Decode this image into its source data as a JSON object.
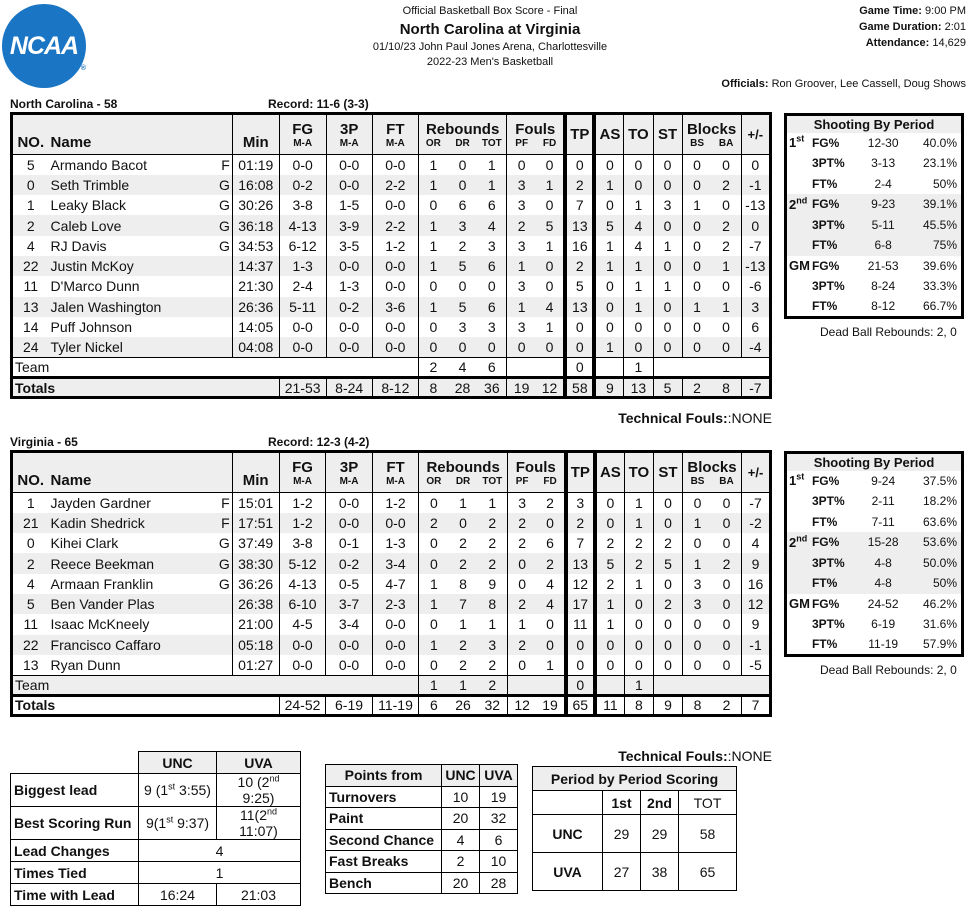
{
  "header": {
    "logo_text": "NCAA",
    "logo_color": "#1a75c4",
    "subtitle": "Official Basketball Box Score - Final",
    "title": "North Carolina at Virginia",
    "venue_line": "01/10/23 John Paul Jones Arena, Charlottesville",
    "season": "2022-23 Men's Basketball",
    "game_time_label": "Game Time:",
    "game_time": "9:00 PM",
    "duration_label": "Game Duration:",
    "duration": "2:01",
    "attendance_label": "Attendance:",
    "attendance": "14,629",
    "officials_label": "Officials:",
    "officials": "Ron Groover, Lee Cassell, Doug Shows"
  },
  "columns": {
    "no": "NO.",
    "name": "Name",
    "min": "Min",
    "fg": "FG",
    "three": "3P",
    "ft": "FT",
    "ma": "M-A",
    "rebounds": "Rebounds",
    "or": "OR",
    "dr": "DR",
    "tot": "TOT",
    "fouls": "Fouls",
    "pf": "PF",
    "fd": "FD",
    "tp": "TP",
    "as": "AS",
    "to": "TO",
    "st": "ST",
    "blocks": "Blocks",
    "bs": "BS",
    "ba": "BA",
    "pm": "+/-"
  },
  "teams": [
    {
      "title": "North Carolina - 58",
      "record": "Record: 11-6 (3-3)",
      "players": [
        {
          "no": "5",
          "name": "Armando Bacot",
          "pos": "F",
          "min": "01:19",
          "fg": "0-0",
          "tp3": "0-0",
          "ft": "0-0",
          "or": "1",
          "dr": "0",
          "tot": "1",
          "pf": "0",
          "fd": "0",
          "tp": "0",
          "as": "0",
          "to": "0",
          "st": "0",
          "bs": "0",
          "ba": "0",
          "pm": "0"
        },
        {
          "no": "0",
          "name": "Seth Trimble",
          "pos": "G",
          "min": "16:08",
          "fg": "0-2",
          "tp3": "0-0",
          "ft": "2-2",
          "or": "1",
          "dr": "0",
          "tot": "1",
          "pf": "3",
          "fd": "1",
          "tp": "2",
          "as": "1",
          "to": "0",
          "st": "0",
          "bs": "0",
          "ba": "2",
          "pm": "-1"
        },
        {
          "no": "1",
          "name": "Leaky Black",
          "pos": "G",
          "min": "30:26",
          "fg": "3-8",
          "tp3": "1-5",
          "ft": "0-0",
          "or": "0",
          "dr": "6",
          "tot": "6",
          "pf": "3",
          "fd": "0",
          "tp": "7",
          "as": "0",
          "to": "1",
          "st": "3",
          "bs": "1",
          "ba": "0",
          "pm": "-13"
        },
        {
          "no": "2",
          "name": "Caleb Love",
          "pos": "G",
          "min": "36:18",
          "fg": "4-13",
          "tp3": "3-9",
          "ft": "2-2",
          "or": "1",
          "dr": "3",
          "tot": "4",
          "pf": "2",
          "fd": "5",
          "tp": "13",
          "as": "5",
          "to": "4",
          "st": "0",
          "bs": "0",
          "ba": "2",
          "pm": "0"
        },
        {
          "no": "4",
          "name": "RJ Davis",
          "pos": "G",
          "min": "34:53",
          "fg": "6-12",
          "tp3": "3-5",
          "ft": "1-2",
          "or": "1",
          "dr": "2",
          "tot": "3",
          "pf": "3",
          "fd": "1",
          "tp": "16",
          "as": "1",
          "to": "4",
          "st": "1",
          "bs": "0",
          "ba": "2",
          "pm": "-7"
        },
        {
          "no": "22",
          "name": "Justin McKoy",
          "pos": "",
          "min": "14:37",
          "fg": "1-3",
          "tp3": "0-0",
          "ft": "0-0",
          "or": "1",
          "dr": "5",
          "tot": "6",
          "pf": "1",
          "fd": "0",
          "tp": "2",
          "as": "1",
          "to": "1",
          "st": "0",
          "bs": "0",
          "ba": "1",
          "pm": "-13"
        },
        {
          "no": "11",
          "name": "D'Marco Dunn",
          "pos": "",
          "min": "21:30",
          "fg": "2-4",
          "tp3": "1-3",
          "ft": "0-0",
          "or": "0",
          "dr": "0",
          "tot": "0",
          "pf": "3",
          "fd": "0",
          "tp": "5",
          "as": "0",
          "to": "1",
          "st": "1",
          "bs": "0",
          "ba": "0",
          "pm": "-6"
        },
        {
          "no": "13",
          "name": "Jalen Washington",
          "pos": "",
          "min": "26:36",
          "fg": "5-11",
          "tp3": "0-2",
          "ft": "3-6",
          "or": "1",
          "dr": "5",
          "tot": "6",
          "pf": "1",
          "fd": "4",
          "tp": "13",
          "as": "0",
          "to": "1",
          "st": "0",
          "bs": "1",
          "ba": "1",
          "pm": "3"
        },
        {
          "no": "14",
          "name": "Puff Johnson",
          "pos": "",
          "min": "14:05",
          "fg": "0-0",
          "tp3": "0-0",
          "ft": "0-0",
          "or": "0",
          "dr": "3",
          "tot": "3",
          "pf": "3",
          "fd": "1",
          "tp": "0",
          "as": "0",
          "to": "0",
          "st": "0",
          "bs": "0",
          "ba": "0",
          "pm": "6"
        },
        {
          "no": "24",
          "name": "Tyler Nickel",
          "pos": "",
          "min": "04:08",
          "fg": "0-0",
          "tp3": "0-0",
          "ft": "0-0",
          "or": "0",
          "dr": "0",
          "tot": "0",
          "pf": "0",
          "fd": "0",
          "tp": "0",
          "as": "1",
          "to": "0",
          "st": "0",
          "bs": "0",
          "ba": "0",
          "pm": "-4"
        }
      ],
      "team_row": {
        "label": "Team",
        "or": "2",
        "dr": "4",
        "tot": "6",
        "tp": "0",
        "to": "1"
      },
      "totals": {
        "label": "Totals",
        "fg": "21-53",
        "tp3": "8-24",
        "ft": "8-12",
        "or": "8",
        "dr": "28",
        "tot": "36",
        "pf": "19",
        "fd": "12",
        "tp": "58",
        "as": "9",
        "to": "13",
        "st": "5",
        "bs": "2",
        "ba": "8",
        "pm": "-7"
      },
      "technical_label": "Technical Fouls:",
      "technical": ":NONE",
      "shooting": {
        "title": "Shooting By Period",
        "periods": [
          {
            "label": "1",
            "sup": "st",
            "rows": [
              {
                "stat": "FG%",
                "ma": "12-30",
                "pct": "40.0%"
              },
              {
                "stat": "3PT%",
                "ma": "3-13",
                "pct": "23.1%"
              },
              {
                "stat": "FT%",
                "ma": "2-4",
                "pct": "50%"
              }
            ]
          },
          {
            "label": "2",
            "sup": "nd",
            "rows": [
              {
                "stat": "FG%",
                "ma": "9-23",
                "pct": "39.1%"
              },
              {
                "stat": "3PT%",
                "ma": "5-11",
                "pct": "45.5%"
              },
              {
                "stat": "FT%",
                "ma": "6-8",
                "pct": "75%"
              }
            ]
          },
          {
            "label": "GM",
            "sup": "",
            "rows": [
              {
                "stat": "FG%",
                "ma": "21-53",
                "pct": "39.6%"
              },
              {
                "stat": "3PT%",
                "ma": "8-24",
                "pct": "33.3%"
              },
              {
                "stat": "FT%",
                "ma": "8-12",
                "pct": "66.7%"
              }
            ]
          }
        ],
        "dead_ball": "Dead Ball Rebounds: 2, 0"
      }
    },
    {
      "title": "Virginia - 65",
      "record": "Record: 12-3 (4-2)",
      "players": [
        {
          "no": "1",
          "name": "Jayden Gardner",
          "pos": "F",
          "min": "15:01",
          "fg": "1-2",
          "tp3": "0-0",
          "ft": "1-2",
          "or": "0",
          "dr": "1",
          "tot": "1",
          "pf": "3",
          "fd": "2",
          "tp": "3",
          "as": "0",
          "to": "1",
          "st": "0",
          "bs": "0",
          "ba": "0",
          "pm": "-7"
        },
        {
          "no": "21",
          "name": "Kadin Shedrick",
          "pos": "F",
          "min": "17:51",
          "fg": "1-2",
          "tp3": "0-0",
          "ft": "0-0",
          "or": "2",
          "dr": "0",
          "tot": "2",
          "pf": "2",
          "fd": "0",
          "tp": "2",
          "as": "0",
          "to": "1",
          "st": "0",
          "bs": "1",
          "ba": "0",
          "pm": "-2"
        },
        {
          "no": "0",
          "name": "Kihei Clark",
          "pos": "G",
          "min": "37:49",
          "fg": "3-8",
          "tp3": "0-1",
          "ft": "1-3",
          "or": "0",
          "dr": "2",
          "tot": "2",
          "pf": "2",
          "fd": "6",
          "tp": "7",
          "as": "2",
          "to": "2",
          "st": "2",
          "bs": "0",
          "ba": "0",
          "pm": "4"
        },
        {
          "no": "2",
          "name": "Reece Beekman",
          "pos": "G",
          "min": "38:30",
          "fg": "5-12",
          "tp3": "0-2",
          "ft": "3-4",
          "or": "0",
          "dr": "2",
          "tot": "2",
          "pf": "0",
          "fd": "2",
          "tp": "13",
          "as": "5",
          "to": "2",
          "st": "5",
          "bs": "1",
          "ba": "2",
          "pm": "9"
        },
        {
          "no": "4",
          "name": "Armaan Franklin",
          "pos": "G",
          "min": "36:26",
          "fg": "4-13",
          "tp3": "0-5",
          "ft": "4-7",
          "or": "1",
          "dr": "8",
          "tot": "9",
          "pf": "0",
          "fd": "4",
          "tp": "12",
          "as": "2",
          "to": "1",
          "st": "0",
          "bs": "3",
          "ba": "0",
          "pm": "16"
        },
        {
          "no": "5",
          "name": "Ben Vander Plas",
          "pos": "",
          "min": "26:38",
          "fg": "6-10",
          "tp3": "3-7",
          "ft": "2-3",
          "or": "1",
          "dr": "7",
          "tot": "8",
          "pf": "2",
          "fd": "4",
          "tp": "17",
          "as": "1",
          "to": "0",
          "st": "2",
          "bs": "3",
          "ba": "0",
          "pm": "12"
        },
        {
          "no": "11",
          "name": "Isaac McKneely",
          "pos": "",
          "min": "21:00",
          "fg": "4-5",
          "tp3": "3-4",
          "ft": "0-0",
          "or": "0",
          "dr": "1",
          "tot": "1",
          "pf": "1",
          "fd": "0",
          "tp": "11",
          "as": "1",
          "to": "0",
          "st": "0",
          "bs": "0",
          "ba": "0",
          "pm": "9"
        },
        {
          "no": "22",
          "name": "Francisco Caffaro",
          "pos": "",
          "min": "05:18",
          "fg": "0-0",
          "tp3": "0-0",
          "ft": "0-0",
          "or": "1",
          "dr": "2",
          "tot": "3",
          "pf": "2",
          "fd": "0",
          "tp": "0",
          "as": "0",
          "to": "0",
          "st": "0",
          "bs": "0",
          "ba": "0",
          "pm": "-1"
        },
        {
          "no": "13",
          "name": "Ryan Dunn",
          "pos": "",
          "min": "01:27",
          "fg": "0-0",
          "tp3": "0-0",
          "ft": "0-0",
          "or": "0",
          "dr": "2",
          "tot": "2",
          "pf": "0",
          "fd": "1",
          "tp": "0",
          "as": "0",
          "to": "0",
          "st": "0",
          "bs": "0",
          "ba": "0",
          "pm": "-5"
        }
      ],
      "team_row": {
        "label": "Team",
        "or": "1",
        "dr": "1",
        "tot": "2",
        "tp": "0",
        "to": "1"
      },
      "totals": {
        "label": "Totals",
        "fg": "24-52",
        "tp3": "6-19",
        "ft": "11-19",
        "or": "6",
        "dr": "26",
        "tot": "32",
        "pf": "12",
        "fd": "19",
        "tp": "65",
        "as": "11",
        "to": "8",
        "st": "9",
        "bs": "8",
        "ba": "2",
        "pm": "7"
      },
      "technical_label": "Technical Fouls:",
      "technical": ":NONE",
      "shooting": {
        "title": "Shooting By Period",
        "periods": [
          {
            "label": "1",
            "sup": "st",
            "rows": [
              {
                "stat": "FG%",
                "ma": "9-24",
                "pct": "37.5%"
              },
              {
                "stat": "3PT%",
                "ma": "2-11",
                "pct": "18.2%"
              },
              {
                "stat": "FT%",
                "ma": "7-11",
                "pct": "63.6%"
              }
            ]
          },
          {
            "label": "2",
            "sup": "nd",
            "rows": [
              {
                "stat": "FG%",
                "ma": "15-28",
                "pct": "53.6%"
              },
              {
                "stat": "3PT%",
                "ma": "4-8",
                "pct": "50.0%"
              },
              {
                "stat": "FT%",
                "ma": "4-8",
                "pct": "50%"
              }
            ]
          },
          {
            "label": "GM",
            "sup": "",
            "rows": [
              {
                "stat": "FG%",
                "ma": "24-52",
                "pct": "46.2%"
              },
              {
                "stat": "3PT%",
                "ma": "6-19",
                "pct": "31.6%"
              },
              {
                "stat": "FT%",
                "ma": "11-19",
                "pct": "57.9%"
              }
            ]
          }
        ],
        "dead_ball": "Dead Ball Rebounds: 2, 0"
      }
    }
  ],
  "game_summary": {
    "headers": [
      "UNC",
      "UVA"
    ],
    "biggest_lead": {
      "label": "Biggest lead",
      "unc_val": "9 (1",
      "unc_sup": "st",
      "unc_rest": " 3:55)",
      "uva_val": "10 (2",
      "uva_sup": "nd",
      "uva_rest": " 9:25)"
    },
    "best_run": {
      "label": "Best Scoring Run",
      "unc_val": "9(1",
      "unc_sup": "st",
      "unc_rest": " 9:37)",
      "uva_val": "11(2",
      "uva_sup": "nd",
      "uva_rest": " 11:07)"
    },
    "lead_changes": {
      "label": "Lead Changes",
      "value": "4"
    },
    "times_tied": {
      "label": "Times Tied",
      "value": "1"
    },
    "time_with_lead": {
      "label": "Time with Lead",
      "unc": "16:24",
      "uva": "21:03"
    }
  },
  "points_from": {
    "header": "Points from",
    "teams": [
      "UNC",
      "UVA"
    ],
    "rows": [
      {
        "label": "Turnovers",
        "unc": "10",
        "uva": "19"
      },
      {
        "label": "Paint",
        "unc": "20",
        "uva": "32"
      },
      {
        "label": "Second Chance",
        "unc": "4",
        "uva": "6"
      },
      {
        "label": "Fast Breaks",
        "unc": "2",
        "uva": "10"
      },
      {
        "label": "Bench",
        "unc": "20",
        "uva": "28"
      }
    ]
  },
  "period_scoring": {
    "title": "Period by Period Scoring",
    "headers": [
      "1st",
      "2nd",
      "TOT"
    ],
    "rows": [
      {
        "team": "UNC",
        "p1": "29",
        "p2": "29",
        "tot": "58"
      },
      {
        "team": "UVA",
        "p1": "27",
        "p2": "38",
        "tot": "65"
      }
    ]
  }
}
